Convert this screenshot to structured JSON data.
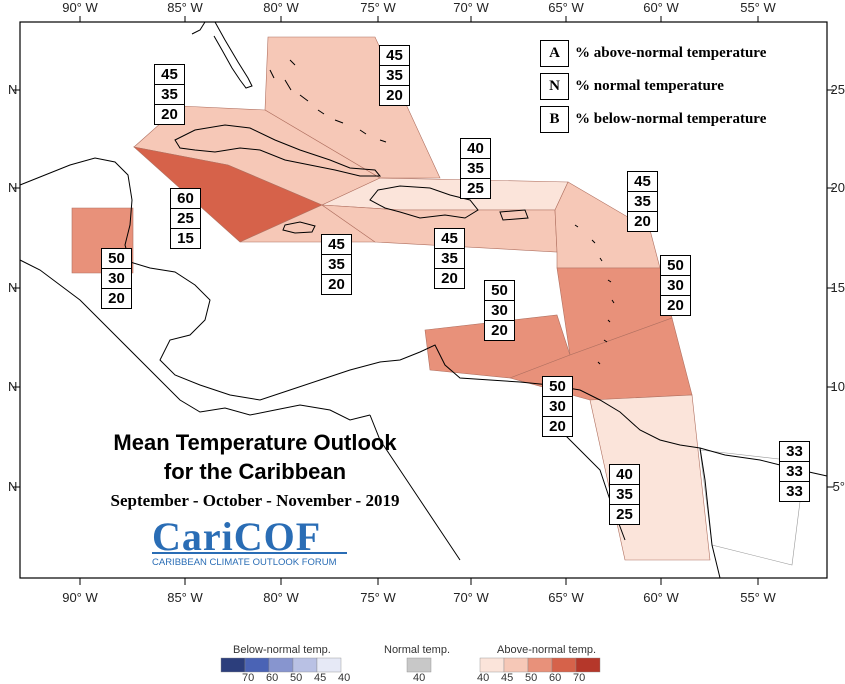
{
  "map": {
    "title_line1": "Mean Temperature Outlook",
    "title_line2": "for the Caribbean",
    "period": "September - October - November - 2019",
    "logo_text": "CariCOF",
    "logo_subtext": "CARIBBEAN CLIMATE OUTLOOK FORUM",
    "lon_labels": [
      "90° W",
      "85° W",
      "80° W",
      "75° W",
      "70° W",
      "65° W",
      "60° W",
      "55° W"
    ],
    "lat_labels_left": [
      "N",
      "N",
      "N",
      "N",
      "N"
    ],
    "lat_labels_right": [
      "25",
      "20",
      "15",
      "10",
      "5°"
    ],
    "ocean_color": "#ffffff",
    "land_outline_color": "#000000"
  },
  "key": {
    "items": [
      {
        "letter": "A",
        "text": "% above-normal temperature"
      },
      {
        "letter": "N",
        "text": "% normal temperature"
      },
      {
        "letter": "B",
        "text": "% below-normal temperature"
      }
    ]
  },
  "regions": [
    {
      "id": "bahamas",
      "probs": [
        "45",
        "35",
        "20"
      ],
      "color": "#f6c8b7"
    },
    {
      "id": "cuba",
      "probs": [
        "45",
        "35",
        "20"
      ],
      "color": "#f6c8b7"
    },
    {
      "id": "cayman",
      "probs": [
        "60",
        "25",
        "15"
      ],
      "color": "#d6624a"
    },
    {
      "id": "belize",
      "probs": [
        "50",
        "30",
        "20"
      ],
      "color": "#e8917a"
    },
    {
      "id": "jamaica",
      "probs": [
        "45",
        "35",
        "20"
      ],
      "color": "#f6c8b7"
    },
    {
      "id": "hispaniola-north",
      "probs": [
        "40",
        "35",
        "25"
      ],
      "color": "#fbe4da"
    },
    {
      "id": "hispaniola-south",
      "probs": [
        "45",
        "35",
        "20"
      ],
      "color": "#f6c8b7"
    },
    {
      "id": "leeward",
      "probs": [
        "45",
        "35",
        "20"
      ],
      "color": "#f6c8b7"
    },
    {
      "id": "windward",
      "probs": [
        "50",
        "30",
        "20"
      ],
      "color": "#e8917a"
    },
    {
      "id": "abc",
      "probs": [
        "50",
        "30",
        "20"
      ],
      "color": "#e8917a"
    },
    {
      "id": "trinidad",
      "probs": [
        "50",
        "30",
        "20"
      ],
      "color": "#e8917a"
    },
    {
      "id": "guyana",
      "probs": [
        "40",
        "35",
        "25"
      ],
      "color": "#fbe4da"
    },
    {
      "id": "french-guiana",
      "probs": [
        "33",
        "33",
        "33"
      ],
      "color": "#ffffff"
    }
  ],
  "colorbar": {
    "below_label": "Below-normal temp.",
    "normal_label": "Normal temp.",
    "above_label": "Above-normal temp.",
    "below_ticks": [
      "70",
      "60",
      "50",
      "45",
      "40"
    ],
    "normal_ticks": [
      "40"
    ],
    "above_ticks": [
      "40",
      "45",
      "50",
      "60",
      "70"
    ],
    "below_colors": [
      "#2c3e7c",
      "#4a63b5",
      "#8795cf",
      "#b9c1e4",
      "#e6e9f6"
    ],
    "normal_color": "#c8c8c8",
    "above_colors": [
      "#fbe4da",
      "#f6c8b7",
      "#e8917a",
      "#d6624a",
      "#b5372a"
    ]
  }
}
